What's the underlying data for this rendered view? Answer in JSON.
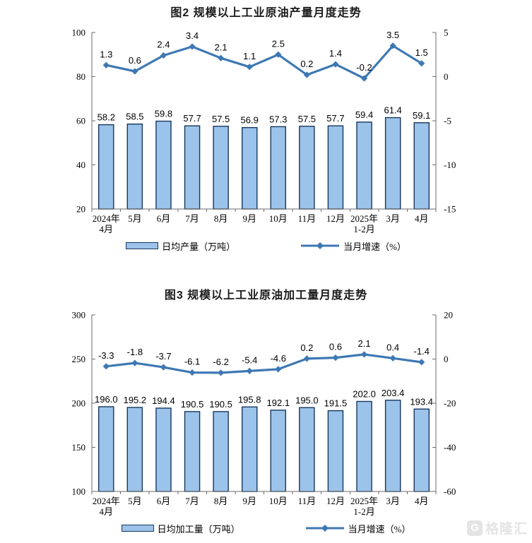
{
  "watermark": {
    "brand": "格隆汇",
    "logo_letter": "G"
  },
  "chart_data": [
    {
      "type": "bar",
      "title": "图2 规模以上工业原油产量月度走势",
      "categories": [
        "2024年\n4月",
        "5月",
        "6月",
        "7月",
        "8月",
        "9月",
        "10月",
        "11月",
        "12月",
        "2025年\n1-2月",
        "3月",
        "4月"
      ],
      "series": [
        {
          "name": "日均产量（万吨）",
          "type": "bar",
          "axis": "left",
          "values": [
            58.2,
            58.5,
            59.8,
            57.7,
            57.5,
            56.9,
            57.3,
            57.5,
            57.7,
            59.4,
            61.4,
            59.1
          ]
        },
        {
          "name": "当月增速（%）",
          "type": "line",
          "axis": "right",
          "values": [
            1.3,
            0.6,
            2.4,
            3.4,
            2.1,
            1.1,
            2.5,
            0.2,
            1.4,
            -0.2,
            3.5,
            1.5
          ]
        }
      ],
      "left_axis": {
        "min": 20,
        "max": 100,
        "ticks": [
          20,
          40,
          60,
          80,
          100
        ]
      },
      "right_axis": {
        "min": -15,
        "max": 5,
        "ticks": [
          -15,
          -10,
          -5,
          0,
          5
        ]
      },
      "colors": {
        "bar_fill": "#9CC3E9",
        "bar_border": "#17375E",
        "line": "#3E78B4"
      },
      "grid": false,
      "legend_position": "bottom"
    },
    {
      "type": "bar",
      "title": "图3 规模以上工业原油加工量月度走势",
      "categories": [
        "2024年\n4月",
        "5月",
        "6月",
        "7月",
        "8月",
        "9月",
        "10月",
        "11月",
        "12月",
        "2025年\n1-2月",
        "3月",
        "4月"
      ],
      "series": [
        {
          "name": "日均加工量（万吨）",
          "type": "bar",
          "axis": "left",
          "values": [
            196.0,
            195.2,
            194.4,
            190.5,
            190.5,
            195.8,
            192.1,
            195.0,
            191.5,
            202.0,
            203.4,
            193.4
          ]
        },
        {
          "name": "当月增速（%）",
          "type": "line",
          "axis": "right",
          "values": [
            -3.3,
            -1.8,
            -3.7,
            -6.1,
            -6.2,
            -5.4,
            -4.6,
            0.2,
            0.6,
            2.1,
            0.4,
            -1.4
          ]
        }
      ],
      "left_axis": {
        "min": 100,
        "max": 300,
        "ticks": [
          100,
          150,
          200,
          250,
          300
        ]
      },
      "right_axis": {
        "min": -60,
        "max": 20,
        "ticks": [
          -60,
          -40,
          -20,
          0,
          20
        ]
      },
      "colors": {
        "bar_fill": "#9CC3E9",
        "bar_border": "#17375E",
        "line": "#3E78B4"
      },
      "grid": false,
      "legend_position": "bottom"
    }
  ]
}
